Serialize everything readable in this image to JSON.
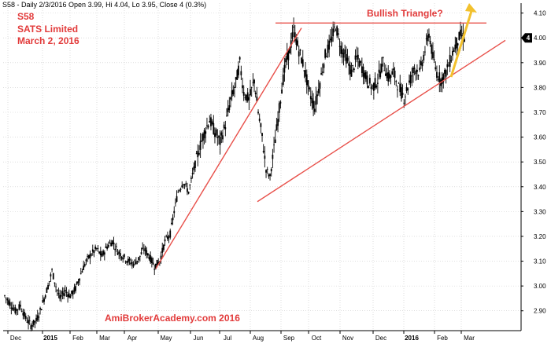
{
  "header": {
    "text": "S58 - Daily 2/3/2016 Open 3.99, Hi 4.04, Lo 3.95, Close 4 (0.3%)"
  },
  "annotations": {
    "symbol": "S58",
    "company": "SATS Limited",
    "date": "March 2, 2016",
    "pattern": "Bullish Triangle?",
    "watermark": "AmiBrokerAcademy.com   2016"
  },
  "colors": {
    "candle": "#000000",
    "trendline": "#e8504a",
    "arrow": "#f2c12e",
    "grid": "#c9c9c9",
    "price_tag_bg": "#000000",
    "price_tag_text": "#ffffff"
  },
  "chart_data": {
    "type": "ohlc",
    "y_ticks": [
      "2.90",
      "3.00",
      "3.10",
      "3.20",
      "3.30",
      "3.40",
      "3.50",
      "3.60",
      "3.70",
      "3.80",
      "3.90",
      "4.00",
      "4.10"
    ],
    "x_labels": [
      "Dec",
      "2015",
      "Feb",
      "Mar",
      "Apr",
      "May",
      "Jun",
      "Jul",
      "Aug",
      "Sep",
      "Oct",
      "Nov",
      "Dec",
      "2016",
      "Feb",
      "Mar"
    ],
    "last_price_tag": "4",
    "ylim": [
      2.82,
      4.14
    ],
    "grid": true,
    "series_points": [
      [
        0,
        2.96
      ],
      [
        4,
        2.93
      ],
      [
        8,
        2.9
      ],
      [
        12,
        2.92
      ],
      [
        16,
        2.87
      ],
      [
        20,
        2.84
      ],
      [
        24,
        2.86
      ],
      [
        27,
        2.9
      ],
      [
        30,
        2.95
      ],
      [
        33,
        3.0
      ],
      [
        36,
        3.06
      ],
      [
        39,
        3.0
      ],
      [
        42,
        2.95
      ],
      [
        46,
        2.98
      ],
      [
        50,
        2.96
      ],
      [
        54,
        2.99
      ],
      [
        58,
        3.05
      ],
      [
        62,
        3.1
      ],
      [
        66,
        3.13
      ],
      [
        70,
        3.15
      ],
      [
        74,
        3.12
      ],
      [
        78,
        3.16
      ],
      [
        82,
        3.18
      ],
      [
        86,
        3.14
      ],
      [
        90,
        3.12
      ],
      [
        94,
        3.1
      ],
      [
        98,
        3.09
      ],
      [
        102,
        3.11
      ],
      [
        106,
        3.15
      ],
      [
        110,
        3.12
      ],
      [
        114,
        3.08
      ],
      [
        118,
        3.1
      ],
      [
        122,
        3.18
      ],
      [
        126,
        3.21
      ],
      [
        129,
        3.3
      ],
      [
        132,
        3.38
      ],
      [
        136,
        3.42
      ],
      [
        140,
        3.38
      ],
      [
        144,
        3.47
      ],
      [
        148,
        3.55
      ],
      [
        152,
        3.62
      ],
      [
        156,
        3.67
      ],
      [
        160,
        3.62
      ],
      [
        164,
        3.58
      ],
      [
        168,
        3.65
      ],
      [
        172,
        3.75
      ],
      [
        176,
        3.82
      ],
      [
        179,
        3.9
      ],
      [
        182,
        3.78
      ],
      [
        186,
        3.75
      ],
      [
        190,
        3.83
      ],
      [
        193,
        3.7
      ],
      [
        196,
        3.6
      ],
      [
        199,
        3.47
      ],
      [
        202,
        3.44
      ],
      [
        205,
        3.55
      ],
      [
        208,
        3.67
      ],
      [
        211,
        3.8
      ],
      [
        214,
        3.9
      ],
      [
        217,
        3.95
      ],
      [
        220,
        4.03
      ],
      [
        224,
        3.95
      ],
      [
        228,
        3.88
      ],
      [
        232,
        3.78
      ],
      [
        236,
        3.72
      ],
      [
        240,
        3.82
      ],
      [
        244,
        3.93
      ],
      [
        248,
        3.98
      ],
      [
        252,
        4.05
      ],
      [
        256,
        3.96
      ],
      [
        260,
        3.92
      ],
      [
        264,
        3.86
      ],
      [
        268,
        3.92
      ],
      [
        272,
        3.88
      ],
      [
        276,
        3.83
      ],
      [
        280,
        3.8
      ],
      [
        284,
        3.83
      ],
      [
        288,
        3.9
      ],
      [
        292,
        3.84
      ],
      [
        296,
        3.86
      ],
      [
        300,
        3.8
      ],
      [
        304,
        3.76
      ],
      [
        308,
        3.82
      ],
      [
        312,
        3.88
      ],
      [
        316,
        3.86
      ],
      [
        320,
        3.95
      ],
      [
        323,
        4.02
      ],
      [
        326,
        3.92
      ],
      [
        329,
        3.86
      ],
      [
        332,
        3.83
      ],
      [
        335,
        3.85
      ],
      [
        338,
        3.89
      ],
      [
        341,
        3.94
      ],
      [
        344,
        3.98
      ],
      [
        347,
        4.01
      ],
      [
        350,
        4.0
      ]
    ],
    "trendlines": [
      {
        "name": "rising_support_2015",
        "from": [
          2015.33,
          3.07
        ],
        "to": [
          2015.6,
          4.04
        ]
      },
      {
        "name": "resistance",
        "from": [
          2015.6,
          4.06
        ],
        "to": [
          2016.17,
          4.06
        ]
      },
      {
        "name": "ascending_support",
        "from": [
          2015.62,
          3.34
        ],
        "to": [
          2016.17,
          3.99
        ]
      }
    ]
  }
}
